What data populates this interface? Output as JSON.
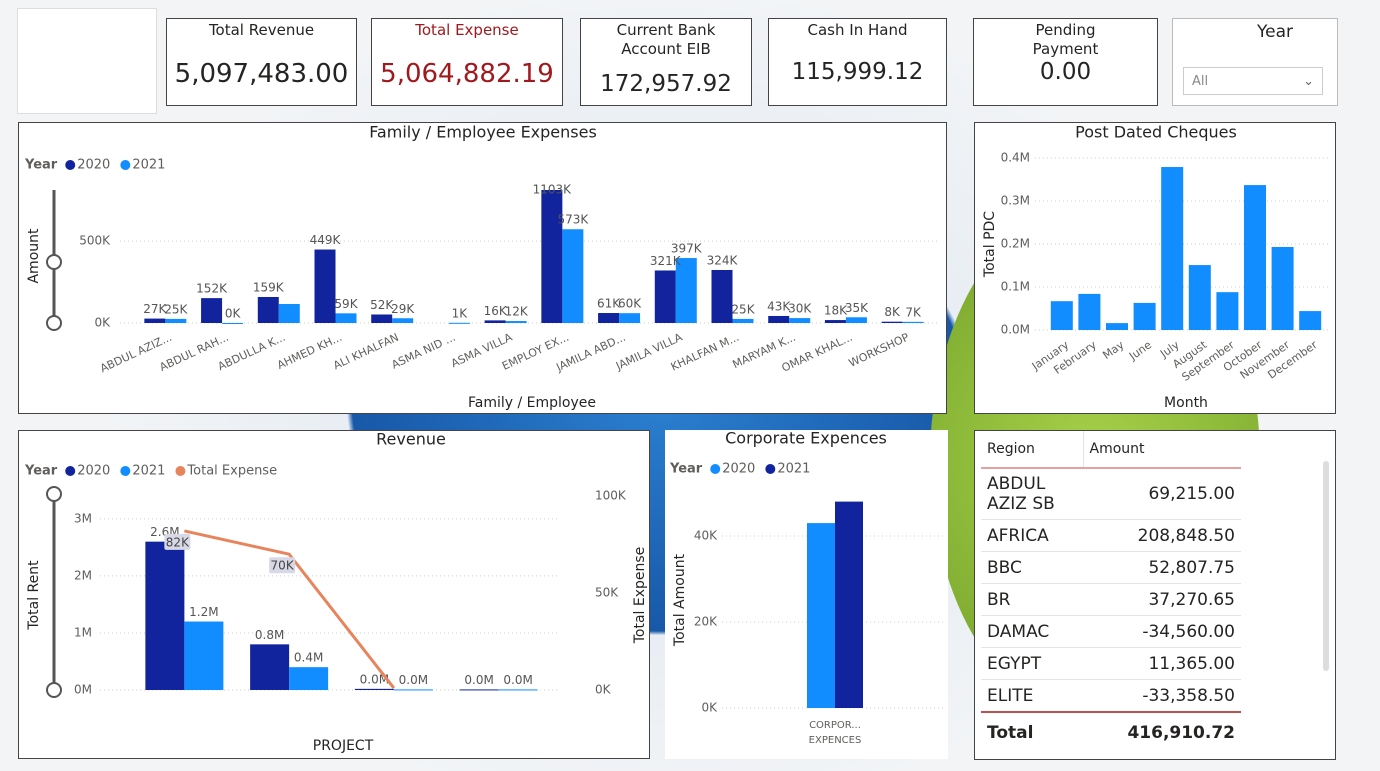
{
  "cards": [
    {
      "title": "Total Revenue",
      "value": "5,097,483.00"
    },
    {
      "title": "Total Expense",
      "value": "5,064,882.19"
    },
    {
      "title": "Current Bank Account EIB",
      "value": "172,957.92"
    },
    {
      "title": "Cash In Hand",
      "value": "115,999.12"
    },
    {
      "title": "Pending Payment",
      "value": "0.00"
    }
  ],
  "slicer": {
    "title": "Year",
    "value": "All"
  },
  "chart_data": [
    {
      "type": "bar",
      "title": "Family / Employee Expenses",
      "legend_title": "Year",
      "x_label": "Family / Employee",
      "y_label": "Amount",
      "grid": true,
      "categories": [
        "ABDUL AZIZ...",
        "ABDUL RAH...",
        "ABDULLA K...",
        "AHMED KH...",
        "ALI KHALFAN",
        "ASMA NID ...",
        "ASMA VILLA",
        "EMPLOY EX...",
        "JAMILA ABD...",
        "JAMILA VILLA",
        "KHALFAN M...",
        "MARYAM K...",
        "OMAR KHAL...",
        "WORKSHOP"
      ],
      "series": [
        {
          "name": "2020",
          "color": "#12239E",
          "values": [
            27000,
            152000,
            159000,
            449000,
            52000,
            null,
            16000,
            1103000,
            61000,
            321000,
            324000,
            43000,
            18000,
            8000
          ],
          "value_labels": [
            "27K",
            "152K",
            "159K",
            "449K",
            "52K",
            null,
            "16K",
            "1103K",
            "61K",
            "321K",
            "324K",
            "43K",
            "18K",
            "8K"
          ]
        },
        {
          "name": "2021",
          "color": "#118DFF",
          "values": [
            25000,
            0,
            116000,
            59000,
            29000,
            1000,
            12000,
            573000,
            60000,
            397000,
            25000,
            30000,
            35000,
            7000
          ],
          "value_labels": [
            "25K",
            "0K",
            null,
            "59K",
            "29K",
            "1K",
            "12K",
            "573K",
            "60K",
            "397K",
            "25K",
            "30K",
            "35K",
            "7K"
          ]
        }
      ],
      "ylim": [
        0,
        770000
      ],
      "yticks": [
        {
          "value": 0,
          "label": "0K"
        },
        {
          "value": 500000,
          "label": "500K"
        }
      ]
    },
    {
      "type": "bar",
      "title": "Post Dated Cheques",
      "x_label": "Month",
      "y_label": "Total PDC",
      "grid": true,
      "categories": [
        "January",
        "February",
        "May",
        "June",
        "July",
        "August",
        "September",
        "October",
        "November",
        "December"
      ],
      "series": [
        {
          "name": "Total PDC",
          "color": "#118DFF",
          "values": [
            67000,
            84000,
            16000,
            63000,
            379000,
            151000,
            88000,
            337000,
            193000,
            44000
          ]
        }
      ],
      "ylim": [
        0,
        400000
      ],
      "yticks": [
        {
          "value": 0,
          "label": "0.0M"
        },
        {
          "value": 100000,
          "label": "0.1M"
        },
        {
          "value": 200000,
          "label": "0.2M"
        },
        {
          "value": 300000,
          "label": "0.3M"
        },
        {
          "value": 400000,
          "label": "0.4M"
        }
      ]
    },
    {
      "type": "combo",
      "title": "Revenue",
      "legend_title": "Year",
      "x_label": "PROJECT",
      "y_label": "Total Rent",
      "y2_label": "Total Expense",
      "grid": true,
      "categories": [
        null,
        null,
        null,
        null
      ],
      "series": [
        {
          "name": "2020",
          "color": "#12239E",
          "values": [
            2600000,
            800000,
            20000,
            10000
          ],
          "value_labels": [
            "2.6M",
            "0.8M",
            "0.0M",
            "0.0M"
          ]
        },
        {
          "name": "2021",
          "color": "#118DFF",
          "values": [
            1200000,
            400000,
            10000,
            10000
          ],
          "value_labels": [
            "1.2M",
            "0.4M",
            "0.0M",
            "0.0M"
          ]
        },
        {
          "name": "Total Expense",
          "color": "#E8845C",
          "axis": "y2",
          "values": [
            82000,
            70000,
            1000,
            null
          ],
          "value_labels": [
            "82K",
            "70K",
            null,
            null
          ]
        }
      ],
      "ylim": [
        0,
        3400000
      ],
      "yticks": [
        {
          "value": 0,
          "label": "0M"
        },
        {
          "value": 1000000,
          "label": "1M"
        },
        {
          "value": 2000000,
          "label": "2M"
        },
        {
          "value": 3000000,
          "label": "3M"
        }
      ],
      "y2lim": [
        0,
        100000
      ],
      "y2ticks": [
        {
          "value": 0,
          "label": "0K"
        },
        {
          "value": 50000,
          "label": "50K"
        },
        {
          "value": 100000,
          "label": "100K"
        }
      ]
    },
    {
      "type": "bar",
      "title": "Corporate Expences",
      "legend_title": "Year",
      "y_label": "Total Amount",
      "grid": true,
      "categories": [
        "CORPOR... EXPENCES"
      ],
      "series": [
        {
          "name": "2020",
          "color": "#118DFF",
          "values": [
            43000
          ]
        },
        {
          "name": "2021",
          "color": "#12239E",
          "values": [
            48000
          ]
        }
      ],
      "ylim": [
        0,
        50000
      ],
      "yticks": [
        {
          "value": 0,
          "label": "0K"
        },
        {
          "value": 20000,
          "label": "20K"
        },
        {
          "value": 40000,
          "label": "40K"
        }
      ]
    }
  ],
  "table": {
    "columns": [
      "Region",
      "Amount"
    ],
    "rows": [
      [
        "ABDUL AZIZ SB",
        "69,215.00"
      ],
      [
        "AFRICA",
        "208,848.50"
      ],
      [
        "BBC",
        "52,807.75"
      ],
      [
        "BR",
        "37,270.65"
      ],
      [
        "DAMAC",
        "-34,560.00"
      ],
      [
        "EGYPT",
        "11,365.00"
      ],
      [
        "ELITE",
        "-33,358.50"
      ]
    ],
    "total": [
      "Total",
      "416,910.72"
    ]
  }
}
